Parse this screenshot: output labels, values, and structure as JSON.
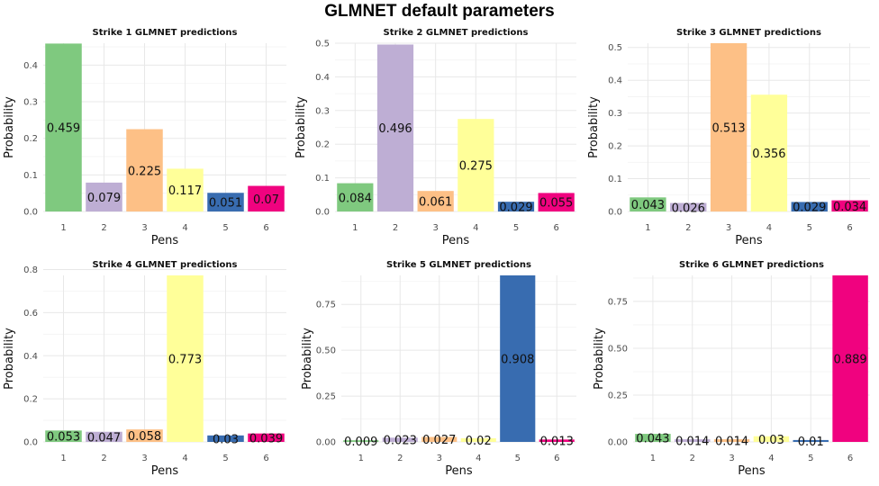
{
  "title": "GLMNET default parameters",
  "colors": {
    "pen1": "#7fc97f",
    "pen2": "#beaed4",
    "pen3": "#fdc086",
    "pen4": "#ffff99",
    "pen5": "#386cb0",
    "pen6": "#f0027f"
  },
  "chart_data": [
    {
      "type": "bar",
      "title": "Strike 1 GLMNET predictions",
      "xlabel": "Pens",
      "ylabel": "Probability",
      "categories": [
        "1",
        "2",
        "3",
        "4",
        "5",
        "6"
      ],
      "values": [
        0.459,
        0.079,
        0.225,
        0.117,
        0.051,
        0.07
      ],
      "labels": [
        "0.459",
        "0.079",
        "0.225",
        "0.117",
        "0.051",
        "0.07"
      ],
      "ylim": [
        0,
        0.46
      ],
      "yticks": [
        0,
        0.1,
        0.2,
        0.3,
        0.4
      ],
      "ytick_labels": [
        "0.0",
        "0.1",
        "0.2",
        "0.3",
        "0.4"
      ],
      "grid": true
    },
    {
      "type": "bar",
      "title": "Strike 2 GLMNET predictions",
      "xlabel": "Pens",
      "ylabel": "Probability",
      "categories": [
        "1",
        "2",
        "3",
        "4",
        "5",
        "6"
      ],
      "values": [
        0.084,
        0.496,
        0.061,
        0.275,
        0.029,
        0.055
      ],
      "labels": [
        "0.084",
        "0.496",
        "0.061",
        "0.275",
        "0.029",
        "0.055"
      ],
      "ylim": [
        0,
        0.5
      ],
      "yticks": [
        0,
        0.1,
        0.2,
        0.3,
        0.4,
        0.5
      ],
      "ytick_labels": [
        "0.0",
        "0.1",
        "0.2",
        "0.3",
        "0.4",
        "0.5"
      ],
      "grid": true
    },
    {
      "type": "bar",
      "title": "Strike 3 GLMNET predictions",
      "xlabel": "Pens",
      "ylabel": "Probability",
      "categories": [
        "1",
        "2",
        "3",
        "4",
        "5",
        "6"
      ],
      "values": [
        0.043,
        0.026,
        0.513,
        0.356,
        0.029,
        0.034
      ],
      "labels": [
        "0.043",
        "0.026",
        "0.513",
        "0.356",
        "0.029",
        "0.034"
      ],
      "ylim": [
        0,
        0.513
      ],
      "yticks": [
        0,
        0.1,
        0.2,
        0.3,
        0.4,
        0.5
      ],
      "ytick_labels": [
        "0.0",
        "0.1",
        "0.2",
        "0.3",
        "0.4",
        "0.5"
      ],
      "grid": true
    },
    {
      "type": "bar",
      "title": "Strike 4 GLMNET predictions",
      "xlabel": "Pens",
      "ylabel": "Probability",
      "categories": [
        "1",
        "2",
        "3",
        "4",
        "5",
        "6"
      ],
      "values": [
        0.053,
        0.047,
        0.058,
        0.773,
        0.03,
        0.039
      ],
      "labels": [
        "0.053",
        "0.047",
        "0.058",
        "0.773",
        "0.03",
        "0.039"
      ],
      "ylim": [
        0,
        0.773
      ],
      "yticks": [
        0,
        0.2,
        0.4,
        0.6,
        0.8
      ],
      "ytick_labels": [
        "0.0",
        "0.2",
        "0.4",
        "0.6",
        "0.8"
      ],
      "grid": true
    },
    {
      "type": "bar",
      "title": "Strike 5 GLMNET predictions",
      "xlabel": "Pens",
      "ylabel": "Probability",
      "categories": [
        "1",
        "2",
        "3",
        "4",
        "5",
        "6"
      ],
      "values": [
        0.009,
        0.023,
        0.027,
        0.02,
        0.908,
        0.013
      ],
      "labels": [
        "0.009",
        "0.023",
        "0.027",
        "0.02",
        "0.908",
        "0.013"
      ],
      "ylim": [
        0,
        0.908
      ],
      "yticks": [
        0,
        0.25,
        0.5,
        0.75
      ],
      "ytick_labels": [
        "0.00",
        "0.25",
        "0.50",
        "0.75"
      ],
      "grid": true
    },
    {
      "type": "bar",
      "title": "Strike 6 GLMNET predictions",
      "xlabel": "Pens",
      "ylabel": "Probability",
      "categories": [
        "1",
        "2",
        "3",
        "4",
        "5",
        "6"
      ],
      "values": [
        0.043,
        0.014,
        0.014,
        0.03,
        0.01,
        0.889
      ],
      "labels": [
        "0.043",
        "0.014",
        "0.014",
        "0.03",
        "0.01",
        "0.889"
      ],
      "ylim": [
        0,
        0.889
      ],
      "yticks": [
        0,
        0.25,
        0.5,
        0.75
      ],
      "ytick_labels": [
        "0.00",
        "0.25",
        "0.50",
        "0.75"
      ],
      "grid": true
    }
  ]
}
